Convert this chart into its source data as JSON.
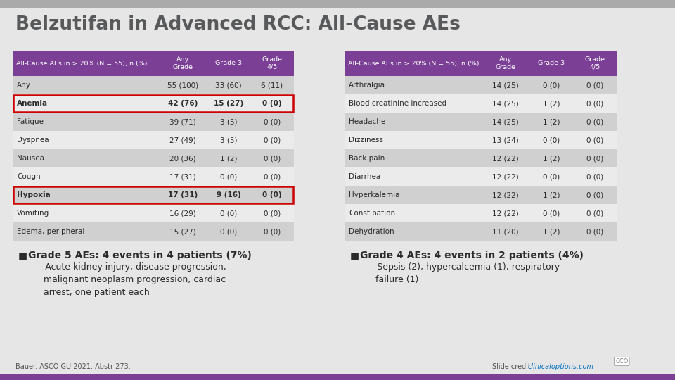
{
  "title": "Belzutifan in Advanced RCC: All-Cause AEs",
  "title_color": "#58595b",
  "bg_color": "#e6e6e6",
  "header_bg": "#7b3f96",
  "header_text_color": "#ffffff",
  "row_colors": [
    "#d0d0d0",
    "#ebebeb"
  ],
  "highlight_border": "#cc0000",
  "col_header": "All-Cause AEs in > 20% (N = 55), n (%)",
  "col1": "Any\nGrade",
  "col2": "Grade 3",
  "col3": "Grade\n4/5",
  "left_rows": [
    [
      "Any",
      "55 (100)",
      "33 (60)",
      "6 (11)",
      false
    ],
    [
      "Anemia",
      "42 (76)",
      "15 (27)",
      "0 (0)",
      true
    ],
    [
      "Fatigue",
      "39 (71)",
      "3 (5)",
      "0 (0)",
      false
    ],
    [
      "Dyspnea",
      "27 (49)",
      "3 (5)",
      "0 (0)",
      false
    ],
    [
      "Nausea",
      "20 (36)",
      "1 (2)",
      "0 (0)",
      false
    ],
    [
      "Cough",
      "17 (31)",
      "0 (0)",
      "0 (0)",
      false
    ],
    [
      "Hypoxia",
      "17 (31)",
      "9 (16)",
      "0 (0)",
      true
    ],
    [
      "Vomiting",
      "16 (29)",
      "0 (0)",
      "0 (0)",
      false
    ],
    [
      "Edema, peripheral",
      "15 (27)",
      "0 (0)",
      "0 (0)",
      false
    ]
  ],
  "right_rows": [
    [
      "Arthralgia",
      "14 (25)",
      "0 (0)",
      "0 (0)",
      false
    ],
    [
      "Blood creatinine increased",
      "14 (25)",
      "1 (2)",
      "0 (0)",
      false
    ],
    [
      "Headache",
      "14 (25)",
      "1 (2)",
      "0 (0)",
      false
    ],
    [
      "Dizziness",
      "13 (24)",
      "0 (0)",
      "0 (0)",
      false
    ],
    [
      "Back pain",
      "12 (22)",
      "1 (2)",
      "0 (0)",
      false
    ],
    [
      "Diarrhea",
      "12 (22)",
      "0 (0)",
      "0 (0)",
      false
    ],
    [
      "Hyperkalemia",
      "12 (22)",
      "1 (2)",
      "0 (0)",
      false
    ],
    [
      "Constipation",
      "12 (22)",
      "0 (0)",
      "0 (0)",
      false
    ],
    [
      "Dehydration",
      "11 (20)",
      "1 (2)",
      "0 (0)",
      false
    ]
  ],
  "bullet1_bold": "Grade 5 AEs: 4 events in 4 patients (7%)",
  "bullet1_sub": "– Acute kidney injury, disease progression,\n  malignant neoplasm progression, cardiac\n  arrest, one patient each",
  "bullet2_bold": "Grade 4 AEs: 4 events in 2 patients (4%)",
  "bullet2_sub": "– Sepsis (2), hypercalcemia (1), respiratory\n  failure (1)",
  "footer_left": "Bauer. ASCO GU 2021. Abstr 273.",
  "footer_link_color": "#0070c0",
  "bottom_bar_color": "#7b3f96",
  "top_bar_color": "#aaaaaa"
}
